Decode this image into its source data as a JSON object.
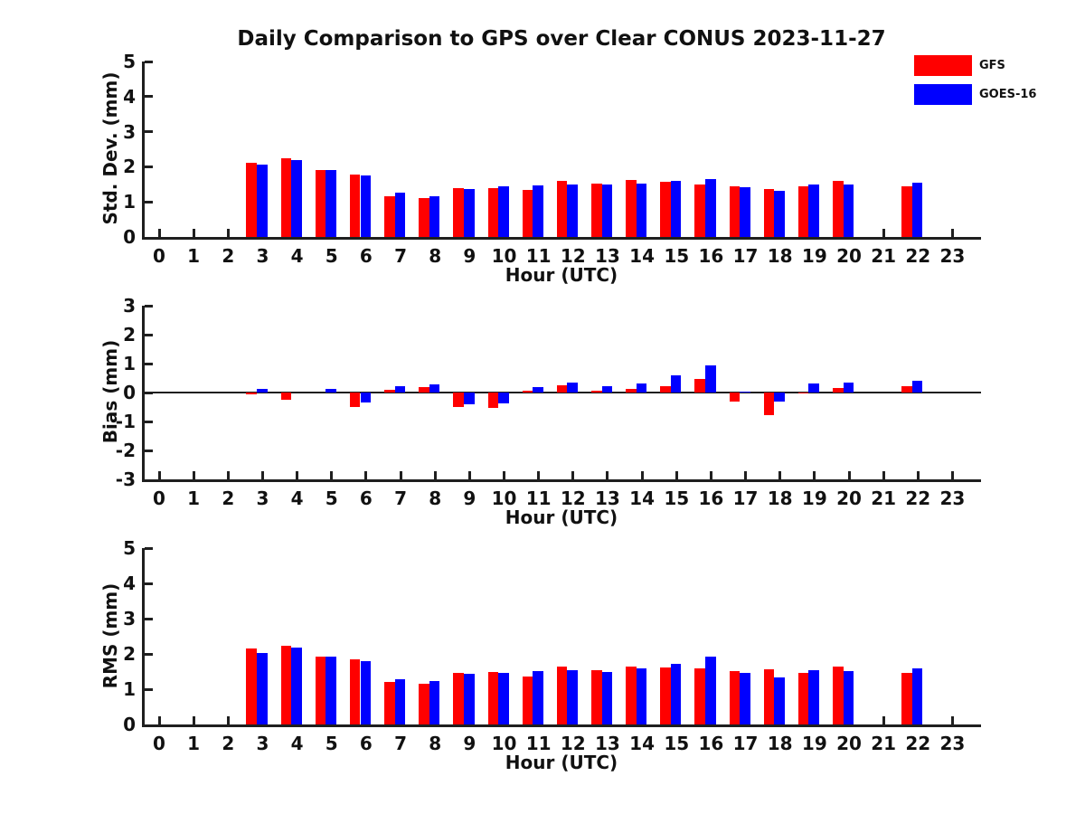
{
  "title": "Daily Comparison to GPS over Clear CONUS 2023-11-27",
  "colors": {
    "gfs": "#ff0000",
    "goes16": "#0000ff",
    "axis": "#1f1f1f"
  },
  "legend": {
    "items": [
      {
        "label": "GFS",
        "color": "#ff0000"
      },
      {
        "label": "GOES-16",
        "color": "#0000ff"
      }
    ]
  },
  "chart_data": [
    {
      "type": "bar",
      "title": "",
      "ylabel": "Std. Dev. (mm)",
      "xlabel": "Hour (UTC)",
      "ylim": [
        0,
        5
      ],
      "yticks": [
        0,
        1,
        2,
        3,
        4,
        5
      ],
      "x": [
        0,
        1,
        2,
        3,
        4,
        5,
        6,
        7,
        8,
        9,
        10,
        11,
        12,
        13,
        14,
        15,
        16,
        17,
        18,
        19,
        20,
        21,
        22,
        23
      ],
      "legend_position": "upper right",
      "grid": false,
      "series": [
        {
          "name": "GFS",
          "color": "#ff0000",
          "values": [
            null,
            null,
            null,
            2.12,
            2.25,
            1.9,
            1.78,
            1.15,
            1.1,
            1.38,
            1.38,
            1.35,
            1.6,
            1.53,
            1.62,
            1.58,
            1.49,
            1.44,
            1.36,
            1.44,
            1.6,
            null,
            1.44,
            null
          ]
        },
        {
          "name": "GOES-16",
          "color": "#0000ff",
          "values": [
            null,
            null,
            null,
            2.06,
            2.2,
            1.9,
            1.74,
            1.27,
            1.17,
            1.37,
            1.44,
            1.47,
            1.49,
            1.49,
            1.53,
            1.6,
            1.66,
            1.43,
            1.31,
            1.49,
            1.49,
            null,
            1.55,
            null
          ]
        }
      ]
    },
    {
      "type": "bar",
      "title": "",
      "ylabel": "Bias (mm)",
      "xlabel": "Hour (UTC)",
      "ylim": [
        -3,
        3
      ],
      "yticks": [
        -3,
        -2,
        -1,
        0,
        1,
        2,
        3
      ],
      "x": [
        0,
        1,
        2,
        3,
        4,
        5,
        6,
        7,
        8,
        9,
        10,
        11,
        12,
        13,
        14,
        15,
        16,
        17,
        18,
        19,
        20,
        21,
        22,
        23
      ],
      "zero_line": true,
      "grid": false,
      "series": [
        {
          "name": "GFS",
          "color": "#ff0000",
          "values": [
            null,
            null,
            null,
            -0.05,
            -0.25,
            0.0,
            -0.5,
            0.08,
            0.2,
            -0.5,
            -0.52,
            0.06,
            0.25,
            0.05,
            0.11,
            0.23,
            0.48,
            -0.32,
            -0.78,
            -0.03,
            0.16,
            null,
            0.23,
            null
          ]
        },
        {
          "name": "GOES-16",
          "color": "#0000ff",
          "values": [
            null,
            null,
            null,
            0.12,
            0.0,
            0.12,
            -0.33,
            0.21,
            0.28,
            -0.4,
            -0.38,
            0.2,
            0.35,
            0.22,
            0.32,
            0.6,
            0.95,
            0.04,
            -0.32,
            0.3,
            0.33,
            null,
            0.41,
            null
          ]
        }
      ]
    },
    {
      "type": "bar",
      "title": "",
      "ylabel": "RMS (mm)",
      "xlabel": "Hour (UTC)",
      "ylim": [
        0,
        5
      ],
      "yticks": [
        0,
        1,
        2,
        3,
        4,
        5
      ],
      "x": [
        0,
        1,
        2,
        3,
        4,
        5,
        6,
        7,
        8,
        9,
        10,
        11,
        12,
        13,
        14,
        15,
        16,
        17,
        18,
        19,
        20,
        21,
        22,
        23
      ],
      "grid": false,
      "series": [
        {
          "name": "GFS",
          "color": "#ff0000",
          "values": [
            null,
            null,
            null,
            2.15,
            2.24,
            1.92,
            1.84,
            1.21,
            1.16,
            1.47,
            1.49,
            1.37,
            1.64,
            1.54,
            1.64,
            1.62,
            1.58,
            1.51,
            1.57,
            1.46,
            1.63,
            null,
            1.46,
            null
          ]
        },
        {
          "name": "GOES-16",
          "color": "#0000ff",
          "values": [
            null,
            null,
            null,
            2.03,
            2.19,
            1.92,
            1.79,
            1.28,
            1.22,
            1.43,
            1.47,
            1.51,
            1.53,
            1.49,
            1.58,
            1.71,
            1.92,
            1.46,
            1.34,
            1.53,
            1.52,
            null,
            1.6,
            null
          ]
        }
      ]
    }
  ]
}
